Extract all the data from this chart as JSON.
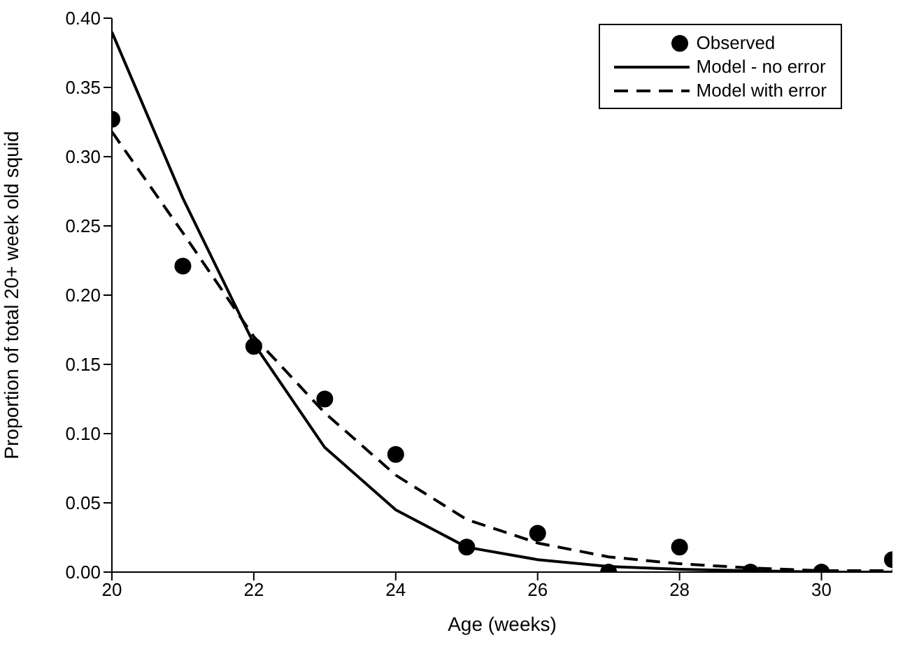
{
  "chart_data": {
    "type": "line",
    "xlabel": "Age (weeks)",
    "ylabel": "Proportion of total 20+ week old squid",
    "x": [
      20,
      21,
      22,
      23,
      24,
      25,
      26,
      27,
      28,
      29,
      30,
      31
    ],
    "series": [
      {
        "name": "Observed",
        "type": "scatter",
        "marker": "circle",
        "color": "#000000",
        "values": [
          0.327,
          0.221,
          0.163,
          0.125,
          0.085,
          0.018,
          0.028,
          0,
          0.018,
          0,
          0,
          0.009
        ]
      },
      {
        "name": "Model - no error",
        "marker": "none",
        "line_style": "solid",
        "color": "#000000",
        "values": [
          0.39,
          0.27,
          0.165,
          0.09,
          0.045,
          0.018,
          0.009,
          0.004,
          0.002,
          0.001,
          0,
          0
        ]
      },
      {
        "name": "Model with error",
        "marker": "none",
        "line_style": "dashed",
        "color": "#000000",
        "values": [
          0.318,
          0.245,
          0.17,
          0.115,
          0.07,
          0.038,
          0.021,
          0.011,
          0.006,
          0.003,
          0.001,
          0.001
        ]
      }
    ],
    "xlim": [
      20,
      31
    ],
    "xticks": [
      20,
      22,
      24,
      26,
      28,
      30
    ],
    "ylim": [
      0,
      0.4
    ],
    "yticks": [
      {
        "value": 0,
        "label": "0.00"
      },
      {
        "value": 0.05,
        "label": "0.05"
      },
      {
        "value": 0.1,
        "label": "0.10"
      },
      {
        "value": 0.15,
        "label": "0.15"
      },
      {
        "value": 0.2,
        "label": "0.20"
      },
      {
        "value": 0.25,
        "label": "0.25"
      },
      {
        "value": 0.3,
        "label": "0.30"
      },
      {
        "value": 0.35,
        "label": "0.35"
      },
      {
        "value": 0.4,
        "label": "0.40"
      }
    ],
    "grid": false,
    "legend": "top right"
  }
}
